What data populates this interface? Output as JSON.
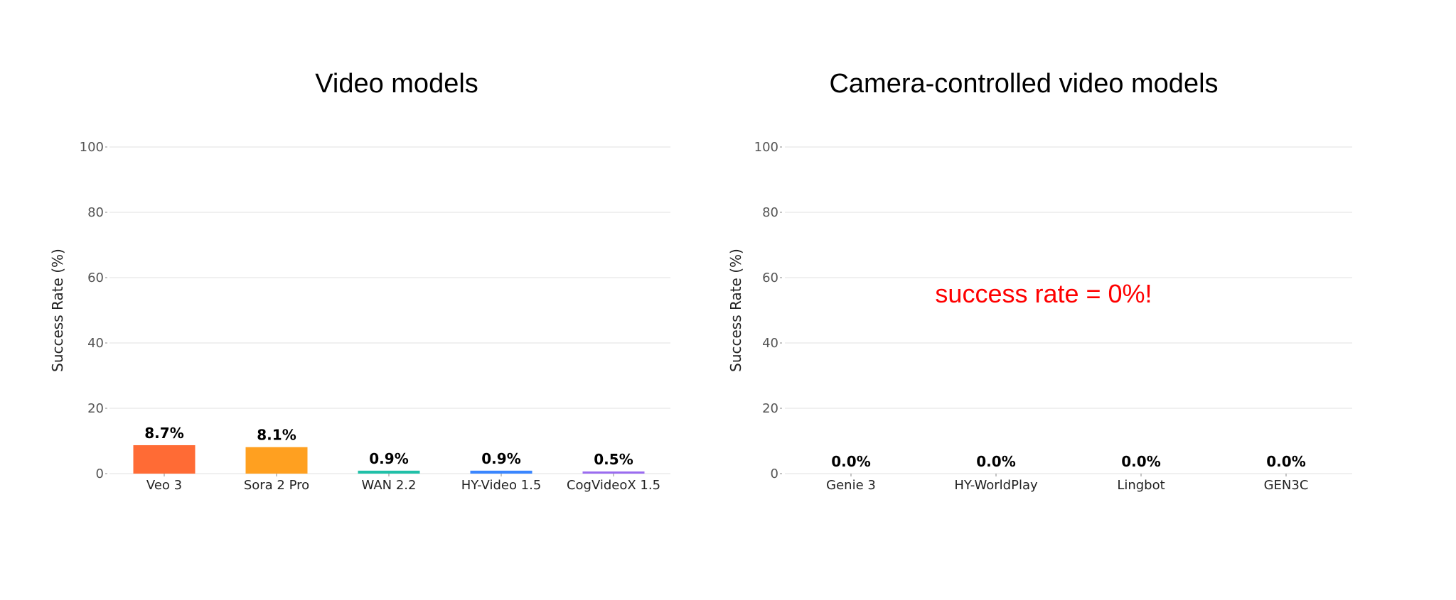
{
  "chart_data": [
    {
      "type": "bar",
      "title": "Video models",
      "xlabel": "",
      "ylabel": "Success Rate (%)",
      "ylim": [
        0,
        100
      ],
      "yticks": [
        0,
        20,
        40,
        60,
        80,
        100
      ],
      "grid": true,
      "categories": [
        "Veo 3",
        "Sora 2 Pro",
        "WAN 2.2",
        "HY-Video 1.5",
        "CogVideoX 1.5"
      ],
      "values": [
        8.7,
        8.1,
        0.9,
        0.9,
        0.5
      ],
      "value_labels": [
        "8.7%",
        "8.1%",
        "0.9%",
        "0.9%",
        "0.5%"
      ],
      "colors": [
        "#FF6B35",
        "#FFA020",
        "#20C0A8",
        "#3A86FF",
        "#9B6CF0"
      ]
    },
    {
      "type": "bar",
      "title": "Camera-controlled video models",
      "xlabel": "",
      "ylabel": "Success Rate (%)",
      "ylim": [
        0,
        100
      ],
      "yticks": [
        0,
        20,
        40,
        60,
        80,
        100
      ],
      "grid": true,
      "categories": [
        "Genie 3",
        "HY-WorldPlay",
        "Lingbot",
        "GEN3C"
      ],
      "values": [
        0.0,
        0.0,
        0.0,
        0.0
      ],
      "value_labels": [
        "0.0%",
        "0.0%",
        "0.0%",
        "0.0%"
      ],
      "colors": [
        "#888888",
        "#888888",
        "#888888",
        "#888888"
      ],
      "annotation": {
        "text": "success rate = 0%!",
        "color": "#FF0000"
      }
    }
  ]
}
